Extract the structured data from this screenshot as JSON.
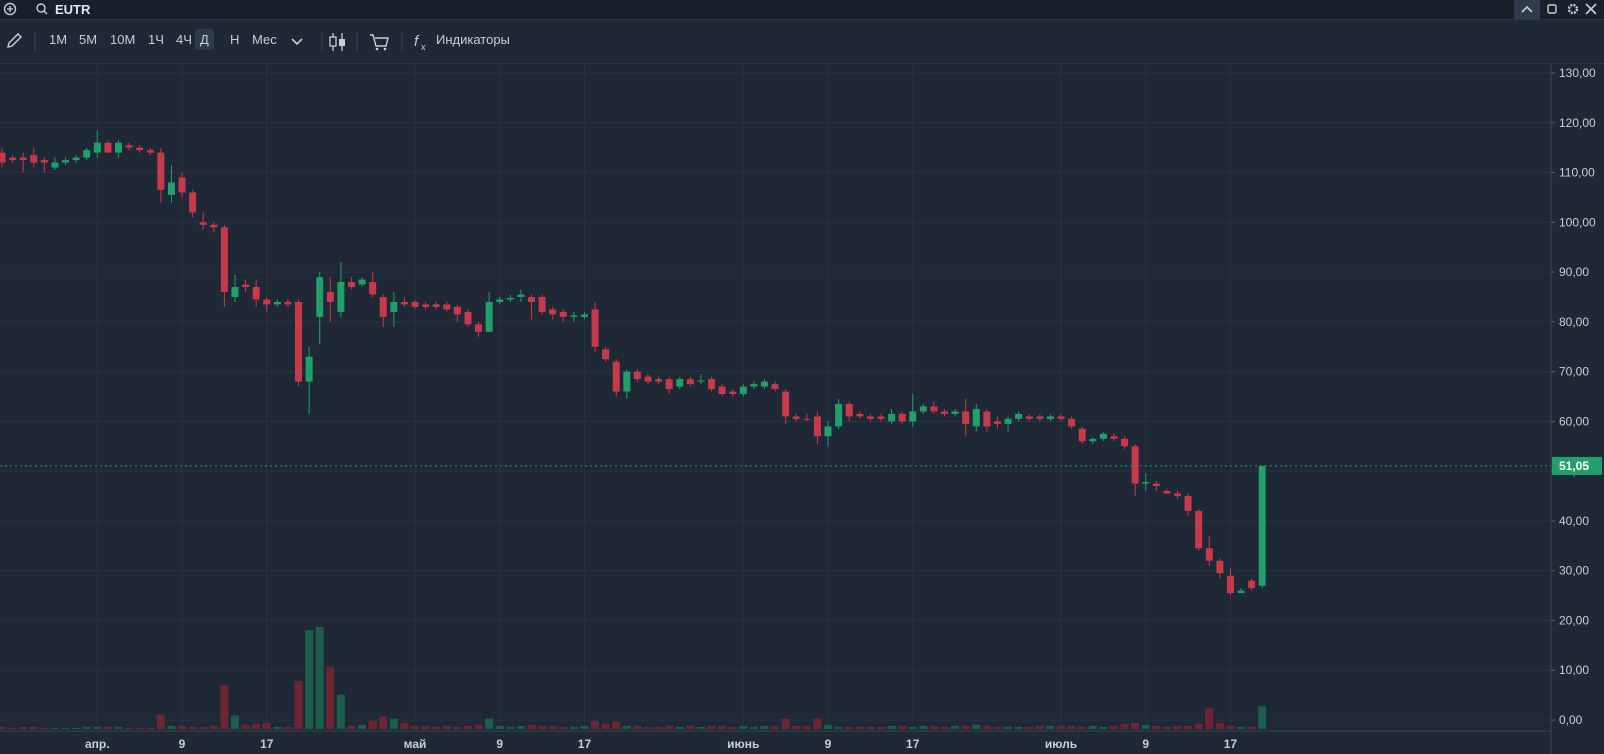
{
  "header": {
    "symbol": "EUTR"
  },
  "toolbar": {
    "intervals": [
      "1М",
      "5М",
      "10М",
      "1Ч",
      "4Ч",
      "Д",
      "Н",
      "Мес"
    ],
    "active_interval": 5,
    "indicators": "Индикаторы"
  },
  "chart_data": {
    "type": "candlestick",
    "up_color": "#22a06b",
    "down_color": "#c8394a",
    "volume_up_color": "#1b5e4b",
    "volume_down_color": "#6e2533",
    "grid": true,
    "ylim": [
      0,
      130
    ],
    "yticks": [
      {
        "value": 0,
        "label": "0,00"
      },
      {
        "value": 10,
        "label": "10,00"
      },
      {
        "value": 20,
        "label": "20,00"
      },
      {
        "value": 30,
        "label": "30,00"
      },
      {
        "value": 40,
        "label": "40,00"
      },
      {
        "value": 50,
        "label": "50,00"
      },
      {
        "value": 60,
        "label": "60,00"
      },
      {
        "value": 70,
        "label": "70,00"
      },
      {
        "value": 80,
        "label": "80,00"
      },
      {
        "value": 90,
        "label": "90,00"
      },
      {
        "value": 100,
        "label": "100,00"
      },
      {
        "value": 110,
        "label": "110,00"
      },
      {
        "value": 120,
        "label": "120,00"
      },
      {
        "value": 130,
        "label": "130,00"
      }
    ],
    "xticks": [
      {
        "value": 9,
        "label": "апр."
      },
      {
        "value": 17,
        "label": "9"
      },
      {
        "value": 25,
        "label": "17"
      },
      {
        "value": 39,
        "label": "май"
      },
      {
        "value": 47,
        "label": "9"
      },
      {
        "value": 55,
        "label": "17"
      },
      {
        "value": 70,
        "label": "июнь"
      },
      {
        "value": 78,
        "label": "9"
      },
      {
        "value": 86,
        "label": "17"
      },
      {
        "value": 100,
        "label": "июль"
      },
      {
        "value": 108,
        "label": "9"
      },
      {
        "value": 116,
        "label": "17"
      }
    ],
    "last_price": {
      "value": 51.05,
      "label": "51,05"
    },
    "open": [
      114,
      113,
      113,
      113.5,
      112.5,
      111,
      112,
      112.5,
      113,
      114,
      116,
      114,
      115.5,
      115,
      114.5,
      114,
      105.5,
      109,
      106,
      100,
      99.5,
      99,
      85,
      87.5,
      87,
      84.5,
      83.5,
      84,
      84,
      68,
      81,
      86,
      82,
      88,
      87.5,
      88,
      85,
      82,
      84,
      84,
      83.5,
      83.5,
      83.5,
      83,
      82,
      79.5,
      78,
      84,
      84.5,
      85,
      85,
      85,
      82.5,
      82,
      81,
      81,
      82.5,
      74.5,
      72,
      66,
      70,
      69,
      68.5,
      68.5,
      67,
      68.5,
      68,
      68.5,
      67,
      66,
      65.5,
      67,
      67,
      67.5,
      66,
      61,
      60.5,
      61,
      57,
      59,
      63.5,
      61.5,
      61,
      61,
      60,
      61.5,
      60,
      62,
      63,
      62,
      61.5,
      62,
      59,
      62,
      60,
      59.5,
      60.5,
      61,
      61,
      60.5,
      61,
      60.5,
      58.5,
      56,
      56.5,
      57,
      56.5,
      55,
      47.5,
      47.5,
      46,
      45.5,
      45,
      42,
      34.5,
      32,
      29,
      25.5,
      28,
      27
    ],
    "high": [
      115,
      113.5,
      114,
      115,
      113,
      113,
      113,
      113.5,
      115,
      118.5,
      116.5,
      116.5,
      116,
      115.5,
      115,
      115,
      111.5,
      110,
      106.5,
      102,
      100,
      99.5,
      89.5,
      88.5,
      88.5,
      85,
      84.5,
      84.5,
      84.5,
      75,
      90,
      89,
      92,
      89,
      89,
      90,
      85.5,
      86,
      85,
      84.5,
      84,
      84,
      84,
      83.5,
      82.5,
      80,
      86,
      85,
      85.5,
      86.5,
      85.5,
      85.5,
      83,
      82.5,
      82,
      82,
      84,
      75,
      72.5,
      70.5,
      70.5,
      69.5,
      69,
      69,
      69,
      69,
      69.5,
      69,
      67.5,
      66.5,
      67.5,
      68,
      68.5,
      68,
      66.5,
      61.5,
      61.5,
      62,
      60,
      64.5,
      64,
      62,
      61.5,
      61.5,
      62.5,
      62,
      65.5,
      63.5,
      64,
      62.5,
      62.5,
      64.5,
      63.5,
      62.5,
      61,
      61,
      62,
      61.5,
      61.5,
      61.5,
      61.5,
      61,
      59,
      56.8,
      57.8,
      57.5,
      57,
      55.5,
      49.5,
      48,
      46.5,
      46,
      45.5,
      42.5,
      37,
      32.5,
      30.5,
      26.5,
      28.5,
      51.05
    ],
    "low": [
      111,
      112,
      110,
      111,
      110,
      110.5,
      111.5,
      112,
      112.5,
      113,
      114,
      113,
      114.5,
      114,
      113.5,
      104,
      104,
      105,
      101,
      98.5,
      98,
      83,
      84,
      86,
      83,
      82,
      83,
      83,
      67,
      61.5,
      75.5,
      80,
      81,
      86.5,
      87,
      85,
      79,
      79,
      83,
      82.5,
      82.5,
      82.5,
      82,
      80,
      79,
      77,
      78,
      83.5,
      84,
      84,
      80.5,
      81.5,
      80.5,
      80,
      80,
      80.5,
      74,
      72,
      65,
      64.5,
      68,
      67.5,
      67.5,
      65.5,
      66.5,
      67,
      67.5,
      66,
      65,
      65,
      65,
      66.5,
      66.5,
      66,
      59.5,
      60,
      60,
      55.5,
      55,
      58.5,
      60,
      60.5,
      60,
      60,
      59.5,
      59.5,
      59,
      61.5,
      61.5,
      61,
      61,
      57,
      58,
      58,
      58.5,
      58,
      60,
      60,
      60,
      60,
      60,
      58.5,
      55.5,
      55.5,
      56,
      56,
      54.5,
      45,
      46,
      46,
      45.5,
      44.5,
      41,
      34,
      31,
      28.5,
      25,
      25.5,
      26,
      26.5
    ],
    "close": [
      112,
      112.5,
      112.5,
      112,
      112,
      112,
      112.5,
      113,
      114.5,
      116,
      114,
      116,
      115,
      114.5,
      114,
      106.5,
      108,
      106,
      102,
      99.5,
      99,
      86,
      87,
      87,
      84.5,
      83.5,
      84,
      83.5,
      68,
      73,
      89,
      84,
      88,
      87,
      88.5,
      85.5,
      81,
      84,
      83.5,
      83,
      83,
      83,
      82.5,
      81.5,
      79.5,
      78,
      84,
      84.5,
      84.8,
      85.5,
      84,
      82,
      81.5,
      81,
      81.3,
      81.5,
      75,
      72.5,
      66,
      70,
      68.5,
      68,
      68,
      66.5,
      68.5,
      67.5,
      68.2,
      66.5,
      65.5,
      65.5,
      67,
      67.5,
      68,
      66.5,
      61,
      60.5,
      60.3,
      57,
      59,
      63.5,
      61,
      61,
      60.5,
      60.5,
      61.5,
      60,
      62,
      63,
      62,
      61.5,
      62,
      59.5,
      62.5,
      59,
      59.5,
      60.5,
      61.5,
      60.5,
      60.5,
      61,
      60.5,
      59,
      56,
      56.5,
      57.5,
      56.5,
      55,
      47.5,
      47.8,
      47,
      45.5,
      45,
      42,
      34.5,
      32,
      29.5,
      25.5,
      26,
      26.5,
      51.05
    ],
    "volume": [
      2,
      1,
      2,
      2,
      1,
      1,
      1,
      1,
      2,
      2,
      2,
      2,
      1,
      1,
      1,
      14,
      3,
      3,
      2,
      2,
      3,
      42,
      13,
      4,
      5,
      6,
      2,
      2,
      46,
      95,
      98,
      60,
      33,
      3,
      4,
      8,
      12,
      10,
      6,
      3,
      3,
      2,
      3,
      2,
      3,
      4,
      10,
      3,
      2,
      3,
      4,
      3,
      3,
      2,
      2,
      3,
      8,
      5,
      7,
      3,
      3,
      2,
      2,
      3,
      2,
      3,
      2,
      3,
      3,
      2,
      3,
      2,
      3,
      3,
      10,
      3,
      3,
      10,
      4,
      2,
      2,
      2,
      2,
      2,
      3,
      3,
      2,
      3,
      3,
      2,
      3,
      3,
      4,
      3,
      2,
      2,
      2,
      2,
      3,
      3,
      3,
      3,
      2,
      3,
      2,
      3,
      5,
      6,
      4,
      3,
      2,
      3,
      3,
      5,
      20,
      6,
      3,
      2,
      2,
      22
    ]
  }
}
